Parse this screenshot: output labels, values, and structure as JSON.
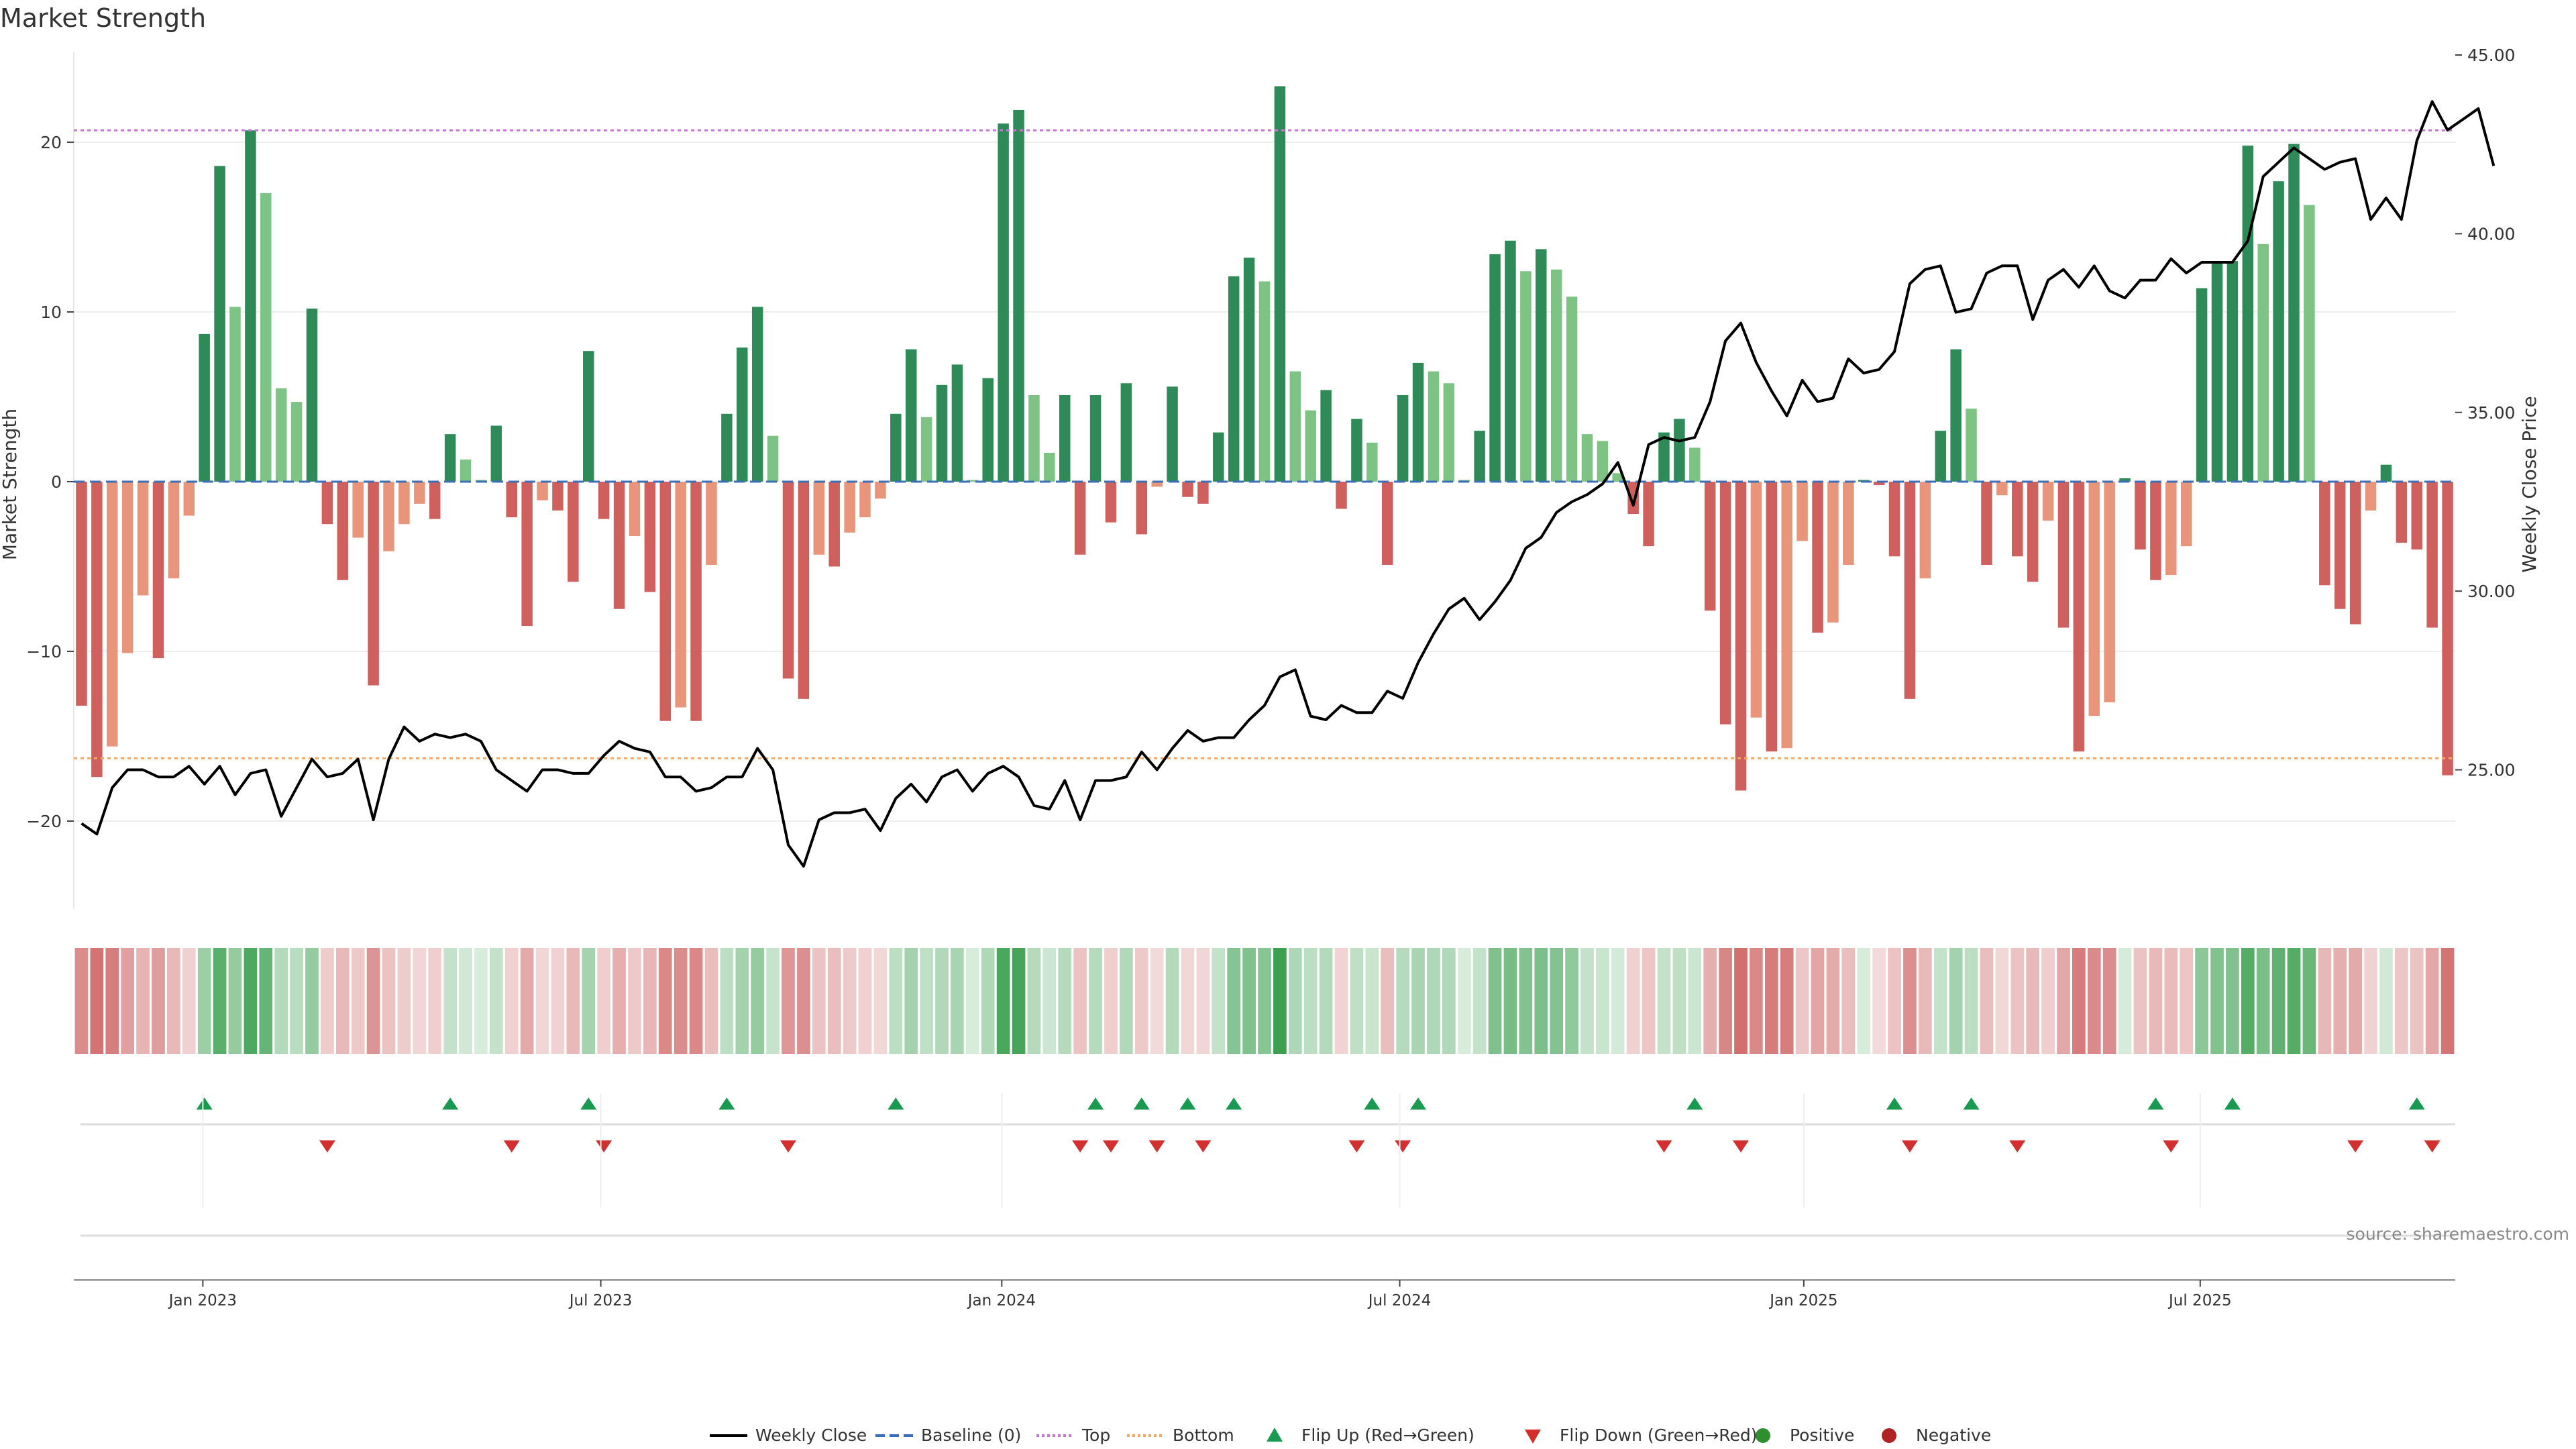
{
  "title": "Market Strength",
  "source": "source: sharemaestro.com",
  "chart_data": {
    "type": "bar",
    "x_start": "2022-11-04",
    "x_interval": "weekly",
    "x_tick_labels": [
      "Jan 2023",
      "Jul 2023",
      "Jan 2024",
      "Jul 2024",
      "Jan 2025",
      "Jul 2025"
    ],
    "ylabel": "Market Strength",
    "y2label": "Weekly Close Price",
    "ylim": [
      -25,
      26
    ],
    "y2lim": [
      21.2,
      45.0
    ],
    "yticks": [
      "20",
      "10",
      "0",
      "−10",
      "−20"
    ],
    "y2ticks": [
      "45.00",
      "40.00",
      "35.00",
      "30.00",
      "25.00"
    ],
    "top_threshold": 20.7,
    "bottom_threshold": -16.3,
    "grid": true,
    "legend_position": "bottom-center",
    "colors": {
      "positive_strong": "#2e8b57",
      "positive_weak": "#7dc383",
      "negative_strong": "#d0605e",
      "negative_weak": "#e8957c",
      "top_line": "#c27ad0",
      "bottom_line": "#f0a868",
      "baseline": "#3b6fb6",
      "price_line": "#000000",
      "flip_up": "#1a9a50",
      "flip_down": "#d32f2f",
      "positive_marker": "#2f8f2f",
      "negative_marker": "#b22222"
    },
    "series": [
      {
        "name": "Market Strength",
        "values": [
          -13.2,
          -17.4,
          -15.6,
          -10.1,
          -6.7,
          -10.4,
          -5.7,
          -2.0,
          8.7,
          18.6,
          10.3,
          20.7,
          17.0,
          5.5,
          4.7,
          10.2,
          -2.5,
          -5.8,
          -3.3,
          -12.0,
          -4.1,
          -2.5,
          -1.3,
          -2.2,
          2.8,
          1.3,
          0.1,
          3.3,
          -2.1,
          -8.5,
          -1.1,
          -1.7,
          -5.9,
          7.7,
          -2.2,
          -7.5,
          -3.2,
          -6.5,
          -14.1,
          -13.3,
          -14.1,
          -4.9,
          4.0,
          7.9,
          10.3,
          2.7,
          -11.6,
          -12.8,
          -4.3,
          -5.0,
          -3.0,
          -2.1,
          -1.0,
          4.0,
          7.8,
          3.8,
          5.7,
          6.9,
          0.1,
          6.1,
          21.1,
          21.9,
          5.1,
          1.7,
          5.1,
          -4.3,
          5.1,
          -2.4,
          5.8,
          -3.1,
          -0.3,
          5.6,
          -0.9,
          -1.3,
          2.9,
          12.1,
          13.2,
          11.8,
          23.3,
          6.5,
          4.2,
          5.4,
          -1.6,
          3.7,
          2.3,
          -4.9,
          5.1,
          7.0,
          6.5,
          5.8,
          0.1,
          3.0,
          13.4,
          14.2,
          12.4,
          13.7,
          12.5,
          10.9,
          2.8,
          2.4,
          0.5,
          -1.9,
          -3.8,
          2.9,
          3.7,
          2.0,
          -7.6,
          -14.3,
          -18.2,
          -13.9,
          -15.9,
          -15.7,
          -3.5,
          -8.9,
          -8.3,
          -4.9,
          0.1,
          -0.2,
          -4.4,
          -12.8,
          -5.7,
          3.0,
          7.8,
          4.3,
          -4.9,
          -0.8,
          -4.4,
          -5.9,
          -2.3,
          -8.6,
          -15.9,
          -13.8,
          -13.0,
          0.2,
          -4.0,
          -5.8,
          -5.5,
          -3.8,
          11.4,
          12.9,
          13.0,
          19.8,
          14.0,
          17.7,
          19.9,
          16.3,
          -6.1,
          -7.5,
          -8.4,
          -1.7,
          1.0,
          -3.6,
          -4.0,
          -8.6,
          -17.3
        ]
      },
      {
        "name": "Weekly Close",
        "values": [
          23.5,
          23.2,
          24.5,
          25.0,
          25.0,
          24.8,
          24.8,
          25.1,
          24.6,
          25.1,
          24.3,
          24.9,
          25.0,
          23.7,
          24.5,
          25.3,
          24.8,
          24.9,
          25.3,
          23.6,
          25.3,
          26.2,
          25.8,
          26.0,
          25.9,
          26.0,
          25.8,
          25.0,
          24.7,
          24.4,
          25.0,
          25.0,
          24.9,
          24.9,
          25.4,
          25.8,
          25.6,
          25.5,
          24.8,
          24.8,
          24.4,
          24.5,
          24.8,
          24.8,
          25.6,
          25.0,
          22.9,
          22.3,
          23.6,
          23.8,
          23.8,
          23.9,
          23.3,
          24.2,
          24.6,
          24.1,
          24.8,
          25.0,
          24.4,
          24.9,
          25.1,
          24.8,
          24.0,
          23.9,
          24.7,
          23.6,
          24.7,
          24.7,
          24.8,
          25.5,
          25.0,
          25.6,
          26.1,
          25.8,
          25.9,
          25.9,
          26.4,
          26.8,
          27.6,
          27.8,
          26.5,
          26.4,
          26.8,
          26.6,
          26.6,
          27.2,
          27.0,
          28.0,
          28.8,
          29.5,
          29.8,
          29.2,
          29.7,
          30.3,
          31.2,
          31.5,
          32.2,
          32.5,
          32.7,
          33.0,
          33.6,
          32.4,
          34.1,
          34.3,
          34.2,
          34.3,
          35.3,
          37.0,
          37.5,
          36.4,
          35.6,
          34.9,
          35.9,
          35.3,
          35.4,
          36.5,
          36.1,
          36.2,
          36.7,
          38.6,
          39.0,
          39.1,
          37.8,
          37.9,
          38.9,
          39.1,
          39.1,
          37.6,
          38.7,
          39.0,
          38.5,
          39.1,
          38.4,
          38.2,
          38.7,
          38.7,
          39.3,
          38.9,
          39.2,
          39.2,
          39.2,
          39.8,
          41.6,
          42.0,
          42.4,
          42.1,
          41.8,
          42.0,
          42.1,
          40.4,
          41.0,
          40.4,
          42.6,
          43.7,
          42.9,
          43.2,
          43.5,
          41.9
        ]
      },
      {
        "name": "Baseline (0)",
        "values": [
          0
        ]
      },
      {
        "name": "Top",
        "values": [
          20.7
        ]
      },
      {
        "name": "Bottom",
        "values": [
          -16.3
        ]
      },
      {
        "name": "Flip Up (Red→Green)",
        "indices": [
          8,
          24,
          33,
          42,
          53,
          66,
          69,
          72,
          75,
          84,
          87,
          105,
          118,
          123,
          135,
          140,
          152
        ]
      },
      {
        "name": "Flip Down (Green→Red)",
        "indices": [
          16,
          28,
          34,
          46,
          65,
          67,
          70,
          73,
          83,
          86,
          103,
          108,
          119,
          126,
          136,
          148,
          153
        ]
      }
    ]
  },
  "legend": [
    {
      "label": "Weekly Close",
      "kind": "line",
      "color": "#000000",
      "dash": ""
    },
    {
      "label": "Baseline (0)",
      "kind": "line",
      "color": "#3b6fb6",
      "dash": "14,7"
    },
    {
      "label": "Top",
      "kind": "line",
      "color": "#c27ad0",
      "dash": "4,4"
    },
    {
      "label": "Bottom",
      "kind": "line",
      "color": "#f0a868",
      "dash": "4,4"
    },
    {
      "label": "Flip Up (Red→Green)",
      "kind": "tri-up",
      "color": "#1a9a50"
    },
    {
      "label": "Flip Down (Green→Red)",
      "kind": "tri-down",
      "color": "#d32f2f"
    },
    {
      "label": "Positive",
      "kind": "dot",
      "color": "#2f8f2f"
    },
    {
      "label": "Negative",
      "kind": "dot",
      "color": "#b22222"
    }
  ]
}
